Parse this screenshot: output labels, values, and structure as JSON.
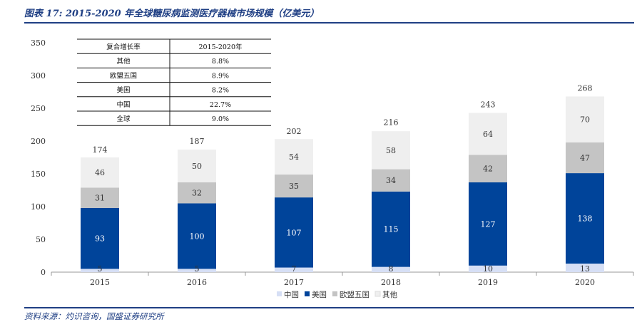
{
  "figure": {
    "title": "图表 17:  2015-2020 年全球糖尿病监测医疗器械市场规模（亿美元）",
    "source": "资料来源：灼识咨询，国盛证券研究所"
  },
  "growth_table": {
    "header": [
      "复合增长率",
      "2015-2020年"
    ],
    "rows": [
      [
        "其他",
        "8.8%"
      ],
      [
        "欧盟五国",
        "8.9%"
      ],
      [
        "美国",
        "8.2%"
      ],
      [
        "中国",
        "22.7%"
      ],
      [
        "全球",
        "9.0%"
      ]
    ]
  },
  "chart_data": {
    "type": "bar",
    "stacked": true,
    "categories": [
      "2015",
      "2016",
      "2017",
      "2018",
      "2019",
      "2020"
    ],
    "series": [
      {
        "name": "中国",
        "values": [
          5,
          5,
          7,
          8,
          10,
          13
        ],
        "color": "#d6dff5"
      },
      {
        "name": "美国",
        "values": [
          93,
          100,
          107,
          115,
          127,
          138
        ],
        "color": "#00449a"
      },
      {
        "name": "欧盟五国",
        "values": [
          31,
          32,
          35,
          34,
          42,
          47
        ],
        "color": "#c4c4c4"
      },
      {
        "name": "其他",
        "values": [
          46,
          50,
          54,
          58,
          64,
          70
        ],
        "color": "#efefef"
      }
    ],
    "totals": [
      174,
      187,
      202,
      216,
      243,
      268
    ],
    "yticks": [
      0,
      50,
      100,
      150,
      200,
      250,
      300,
      350
    ],
    "ylim": [
      0,
      350
    ],
    "legend_position": "bottom",
    "grid": false
  }
}
